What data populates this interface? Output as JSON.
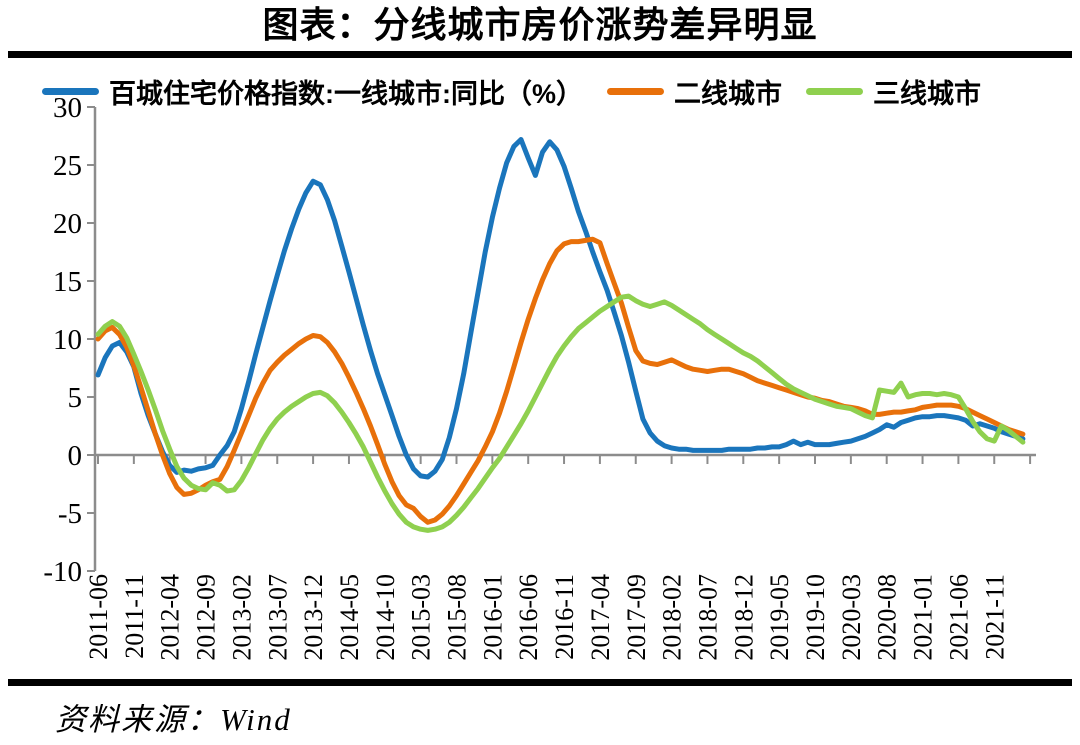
{
  "title": "图表：分线城市房价涨势差异明显",
  "source_note": "资料来源：Wind",
  "colors": {
    "tier1_blue": "#1a75bc",
    "tier2_orange": "#e8700a",
    "tier3_green": "#8fd04f",
    "axis_gray": "#8c8c8c",
    "text_black": "#000000"
  },
  "legend": {
    "items": [
      {
        "name": "tier1",
        "label": "百城住宅价格指数:一线城市:同比（%）",
        "color": "#1a75bc"
      },
      {
        "name": "tier2",
        "label": "二线城市",
        "color": "#e8700a"
      },
      {
        "name": "tier3",
        "label": "三线城市",
        "color": "#8fd04f"
      }
    ]
  },
  "chart_data": {
    "type": "line",
    "title": "图表：分线城市房价涨势差异明显",
    "xlabel": "",
    "ylabel": "",
    "unit": "%",
    "x_start": "2011-06",
    "x_frequency": "monthly",
    "x_tick_labels": [
      "2011-06",
      "2011-11",
      "2012-04",
      "2012-09",
      "2013-02",
      "2013-07",
      "2013-12",
      "2014-05",
      "2014-10",
      "2015-03",
      "2015-08",
      "2016-01",
      "2016-06",
      "2016-11",
      "2017-04",
      "2017-09",
      "2018-02",
      "2018-07",
      "2018-12",
      "2019-05",
      "2019-10",
      "2020-03",
      "2020-08",
      "2021-01",
      "2021-06",
      "2021-11"
    ],
    "y_ticks": [
      30,
      25,
      20,
      15,
      10,
      5,
      0,
      -5,
      -10
    ],
    "ylim": [
      -10,
      30
    ],
    "grid": "zero-line-only",
    "legend_position": "top",
    "series": [
      {
        "name": "百城住宅价格指数:一线城市:同比（%）",
        "color": "#1a75bc",
        "values": [
          6.9,
          8.4,
          9.4,
          9.7,
          8.9,
          7.6,
          5.3,
          3.4,
          1.8,
          0.3,
          -0.9,
          -1.5,
          -1.3,
          -1.4,
          -1.2,
          -1.1,
          -0.9,
          0.0,
          0.8,
          2.0,
          4.0,
          6.3,
          8.7,
          11.0,
          13.3,
          15.5,
          17.6,
          19.5,
          21.2,
          22.6,
          23.6,
          23.3,
          22.0,
          20.2,
          18.0,
          15.8,
          13.5,
          11.2,
          9.0,
          7.0,
          5.2,
          3.4,
          1.6,
          0.0,
          -1.2,
          -1.8,
          -1.9,
          -1.4,
          -0.4,
          1.5,
          4.0,
          7.0,
          10.5,
          14.0,
          17.5,
          20.5,
          23.0,
          25.2,
          26.6,
          27.2,
          25.6,
          24.1,
          26.1,
          27.0,
          26.3,
          24.9,
          23.0,
          21.0,
          19.3,
          17.5,
          15.8,
          14.2,
          12.3,
          10.3,
          8.0,
          5.5,
          3.1,
          1.9,
          1.2,
          0.8,
          0.6,
          0.5,
          0.5,
          0.4,
          0.4,
          0.4,
          0.4,
          0.4,
          0.5,
          0.5,
          0.5,
          0.5,
          0.6,
          0.6,
          0.7,
          0.7,
          0.9,
          1.2,
          0.9,
          1.1,
          0.9,
          0.9,
          0.9,
          1.0,
          1.1,
          1.2,
          1.4,
          1.6,
          1.9,
          2.2,
          2.6,
          2.4,
          2.8,
          3.0,
          3.2,
          3.3,
          3.3,
          3.4,
          3.4,
          3.3,
          3.2,
          3.0,
          2.5,
          2.7,
          2.5,
          2.3,
          2.0,
          1.8,
          1.6,
          1.4
        ]
      },
      {
        "name": "二线城市",
        "color": "#e8700a",
        "values": [
          10.0,
          10.7,
          11.0,
          10.4,
          9.3,
          7.7,
          5.8,
          3.8,
          1.8,
          0.0,
          -1.6,
          -2.8,
          -3.4,
          -3.3,
          -3.0,
          -2.6,
          -2.3,
          -2.1,
          -1.0,
          0.4,
          1.9,
          3.4,
          4.9,
          6.2,
          7.3,
          8.0,
          8.6,
          9.1,
          9.6,
          10.0,
          10.3,
          10.2,
          9.7,
          8.9,
          7.9,
          6.7,
          5.4,
          4.0,
          2.5,
          0.9,
          -0.8,
          -2.3,
          -3.5,
          -4.3,
          -4.6,
          -5.3,
          -5.8,
          -5.6,
          -5.1,
          -4.4,
          -3.5,
          -2.5,
          -1.5,
          -0.5,
          0.7,
          2.0,
          3.6,
          5.5,
          7.6,
          9.7,
          11.7,
          13.5,
          15.1,
          16.5,
          17.6,
          18.2,
          18.4,
          18.4,
          18.5,
          18.6,
          18.3,
          16.5,
          14.8,
          13.1,
          11.0,
          9.0,
          8.1,
          7.9,
          7.8,
          8.0,
          8.2,
          7.9,
          7.6,
          7.4,
          7.3,
          7.2,
          7.3,
          7.4,
          7.4,
          7.2,
          7.0,
          6.7,
          6.4,
          6.2,
          6.0,
          5.8,
          5.6,
          5.4,
          5.2,
          5.0,
          4.9,
          4.7,
          4.6,
          4.4,
          4.2,
          4.1,
          4.0,
          3.8,
          3.5,
          3.5,
          3.6,
          3.7,
          3.7,
          3.8,
          3.9,
          4.1,
          4.2,
          4.3,
          4.3,
          4.3,
          4.2,
          4.0,
          3.7,
          3.4,
          3.1,
          2.8,
          2.5,
          2.2,
          2.0,
          1.8
        ]
      },
      {
        "name": "三线城市",
        "color": "#8fd04f",
        "values": [
          10.4,
          11.1,
          11.5,
          11.1,
          10.1,
          8.7,
          7.2,
          5.6,
          3.9,
          2.1,
          0.5,
          -1.0,
          -2.0,
          -2.6,
          -2.9,
          -3.0,
          -2.4,
          -2.6,
          -3.1,
          -3.0,
          -2.2,
          -1.1,
          0.1,
          1.3,
          2.3,
          3.1,
          3.7,
          4.2,
          4.6,
          5.0,
          5.3,
          5.4,
          5.1,
          4.5,
          3.7,
          2.8,
          1.8,
          0.7,
          -0.6,
          -1.9,
          -3.1,
          -4.2,
          -5.1,
          -5.8,
          -6.2,
          -6.4,
          -6.5,
          -6.4,
          -6.2,
          -5.8,
          -5.2,
          -4.5,
          -3.7,
          -2.9,
          -2.0,
          -1.1,
          -0.3,
          0.7,
          1.7,
          2.7,
          3.8,
          5.0,
          6.2,
          7.4,
          8.5,
          9.4,
          10.2,
          10.9,
          11.4,
          11.9,
          12.4,
          12.8,
          13.2,
          13.6,
          13.7,
          13.3,
          13.0,
          12.8,
          13.0,
          13.2,
          12.9,
          12.5,
          12.1,
          11.7,
          11.3,
          10.8,
          10.4,
          10.0,
          9.6,
          9.2,
          8.8,
          8.5,
          8.1,
          7.6,
          7.1,
          6.6,
          6.1,
          5.7,
          5.4,
          5.1,
          4.8,
          4.6,
          4.4,
          4.2,
          4.1,
          4.0,
          3.7,
          3.4,
          3.2,
          5.6,
          5.5,
          5.4,
          6.2,
          5.0,
          5.2,
          5.3,
          5.3,
          5.2,
          5.3,
          5.2,
          5.0,
          4.0,
          2.9,
          2.0,
          1.4,
          1.2,
          2.5,
          2.1,
          1.6,
          1.1
        ]
      }
    ]
  }
}
